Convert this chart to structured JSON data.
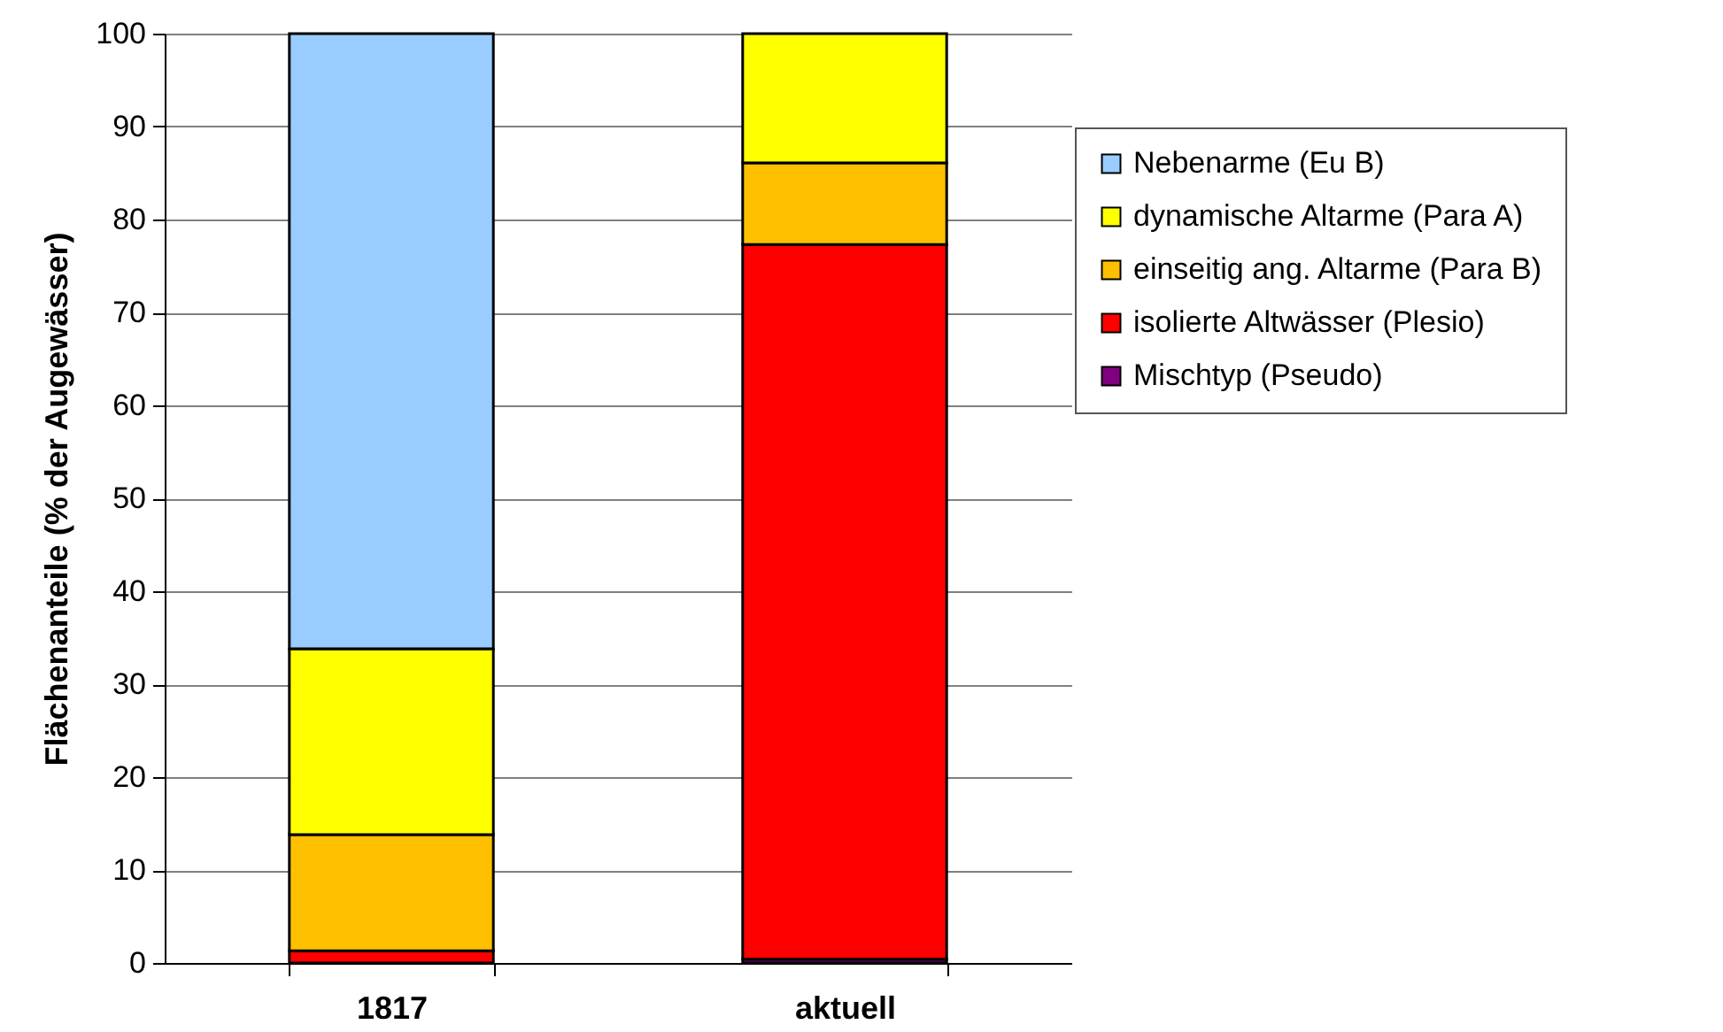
{
  "chart_data": {
    "type": "bar",
    "stacked": true,
    "ylabel": "Flächenanteile (% der Augewässer)",
    "categories": [
      "1817",
      "aktuell"
    ],
    "series": [
      {
        "name": "Mischtyp (Pseudo)",
        "color": "#800080",
        "values": [
          0,
          0.4
        ]
      },
      {
        "name": "isolierte Altwässer (Plesio)",
        "color": "#ff0000",
        "values": [
          1.3,
          76.9
        ]
      },
      {
        "name": "einseitig ang. Altarme (Para B)",
        "color": "#ffc000",
        "values": [
          12.5,
          8.8
        ]
      },
      {
        "name": "dynamische Altarme (Para A)",
        "color": "#ffff00",
        "values": [
          20,
          13.9
        ]
      },
      {
        "name": "Nebenarme (Eu B)",
        "color": "#99ccff",
        "values": [
          66.2,
          0
        ]
      }
    ],
    "ylim": [
      0,
      100
    ],
    "yticks": [
      0,
      10,
      20,
      30,
      40,
      50,
      60,
      70,
      80,
      90,
      100
    ],
    "grid": "y",
    "legend": "right"
  }
}
